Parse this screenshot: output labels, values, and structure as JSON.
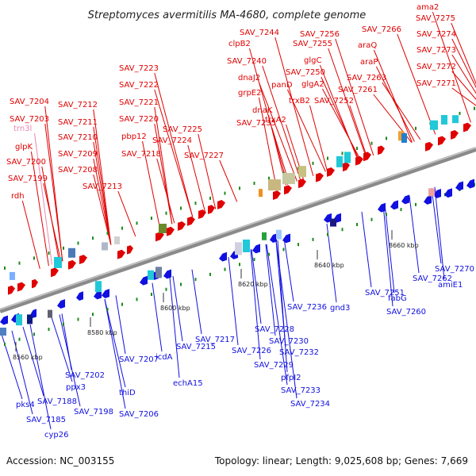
{
  "title": "Streptomyces avermitilis MA-4680, complete genome",
  "footer": {
    "accession": "Accession: NC_003155",
    "stats": "Topology: linear; Length: 9,025,608 bp; Genes: 7,669"
  },
  "colors": {
    "forward": "#e00000",
    "reverse": "#1010e0",
    "rna": "#e888b0",
    "backbone": "#909090",
    "tick": "#1a8a1a"
  },
  "ticks": [
    "8560 kbp",
    "8580 kbp",
    "8600 kbp",
    "8620 kbp",
    "8640 kbp",
    "8660 kbp"
  ],
  "top_genes": [
    {
      "name": "SAV_7204",
      "type": "forward"
    },
    {
      "name": "SAV_7203",
      "type": "forward"
    },
    {
      "name": "trn3l",
      "type": "rna"
    },
    {
      "name": "glpK",
      "type": "forward"
    },
    {
      "name": "SAV_7200",
      "type": "forward"
    },
    {
      "name": "SAV_7199",
      "type": "forward"
    },
    {
      "name": "rdh",
      "type": "forward"
    },
    {
      "name": "SAV_7212",
      "type": "forward"
    },
    {
      "name": "SAV_7211",
      "type": "forward"
    },
    {
      "name": "SAV_7210",
      "type": "forward"
    },
    {
      "name": "SAV_7209",
      "type": "forward"
    },
    {
      "name": "SAV_7208",
      "type": "forward"
    },
    {
      "name": "SAV_7213",
      "type": "forward"
    },
    {
      "name": "SAV_7223",
      "type": "forward"
    },
    {
      "name": "SAV_7222",
      "type": "forward"
    },
    {
      "name": "SAV_7221",
      "type": "forward"
    },
    {
      "name": "SAV_7220",
      "type": "forward"
    },
    {
      "name": "pbp12",
      "type": "forward"
    },
    {
      "name": "SAV_7218",
      "type": "forward"
    },
    {
      "name": "SAV_7225",
      "type": "forward"
    },
    {
      "name": "SAV_7224",
      "type": "forward"
    },
    {
      "name": "SAV_7227",
      "type": "forward"
    },
    {
      "name": "SAV_7244",
      "type": "forward"
    },
    {
      "name": "clpB2",
      "type": "forward"
    },
    {
      "name": "SAV_7240",
      "type": "forward"
    },
    {
      "name": "dnaJ2",
      "type": "forward"
    },
    {
      "name": "grpE2",
      "type": "forward"
    },
    {
      "name": "dnaK",
      "type": "forward"
    },
    {
      "name": "SAV_7235",
      "type": "forward"
    },
    {
      "name": "panD",
      "type": "forward"
    },
    {
      "name": "SAV_7250",
      "type": "forward"
    },
    {
      "name": "trxB2",
      "type": "forward"
    },
    {
      "name": "trxA2",
      "type": "forward"
    },
    {
      "name": "SAV_7256",
      "type": "forward"
    },
    {
      "name": "SAV_7255",
      "type": "forward"
    },
    {
      "name": "glgC",
      "type": "forward"
    },
    {
      "name": "glgA2",
      "type": "forward"
    },
    {
      "name": "SAV_7252",
      "type": "forward"
    },
    {
      "name": "SAV_7266",
      "type": "forward"
    },
    {
      "name": "araQ",
      "type": "forward"
    },
    {
      "name": "araP",
      "type": "forward"
    },
    {
      "name": "SAV_7263",
      "type": "forward"
    },
    {
      "name": "SAV_7261",
      "type": "forward"
    },
    {
      "name": "ama2",
      "type": "forward"
    },
    {
      "name": "SAV_7275",
      "type": "forward"
    },
    {
      "name": "SAV_7274",
      "type": "forward"
    },
    {
      "name": "SAV_7273",
      "type": "forward"
    },
    {
      "name": "SAV_7272",
      "type": "forward"
    },
    {
      "name": "SAV_7271",
      "type": "forward"
    }
  ],
  "bottom_genes": [
    {
      "name": "SAV_7270",
      "type": "reverse"
    },
    {
      "name": "amiE1",
      "type": "reverse"
    },
    {
      "name": "SAV_7262",
      "type": "reverse"
    },
    {
      "name": "fabG",
      "type": "reverse"
    },
    {
      "name": "SAV_7260",
      "type": "reverse"
    },
    {
      "name": "SAV_7251",
      "type": "reverse"
    },
    {
      "name": "gnd3",
      "type": "reverse"
    },
    {
      "name": "SAV_7236",
      "type": "reverse"
    },
    {
      "name": "SAV_7228",
      "type": "reverse"
    },
    {
      "name": "SAV_7230",
      "type": "reverse"
    },
    {
      "name": "SAV_7232",
      "type": "reverse"
    },
    {
      "name": "SAV_7229",
      "type": "reverse"
    },
    {
      "name": "pfpI2",
      "type": "reverse"
    },
    {
      "name": "SAV_7233",
      "type": "reverse"
    },
    {
      "name": "SAV_7234",
      "type": "reverse"
    },
    {
      "name": "SAV_7226",
      "type": "reverse"
    },
    {
      "name": "SAV_7217",
      "type": "reverse"
    },
    {
      "name": "icdA",
      "type": "reverse"
    },
    {
      "name": "SAV_7215",
      "type": "reverse"
    },
    {
      "name": "echA15",
      "type": "reverse"
    },
    {
      "name": "SAV_7207",
      "type": "reverse"
    },
    {
      "name": "thiD",
      "type": "reverse"
    },
    {
      "name": "SAV_7206",
      "type": "reverse"
    },
    {
      "name": "SAV_7202",
      "type": "reverse"
    },
    {
      "name": "SAV_7198",
      "type": "reverse"
    },
    {
      "name": "ppx3",
      "type": "reverse"
    },
    {
      "name": "SAV_7188",
      "type": "reverse"
    },
    {
      "name": "pks4",
      "type": "reverse"
    },
    {
      "name": "SAV_7185",
      "type": "reverse"
    },
    {
      "name": "cyp26",
      "type": "reverse"
    }
  ]
}
